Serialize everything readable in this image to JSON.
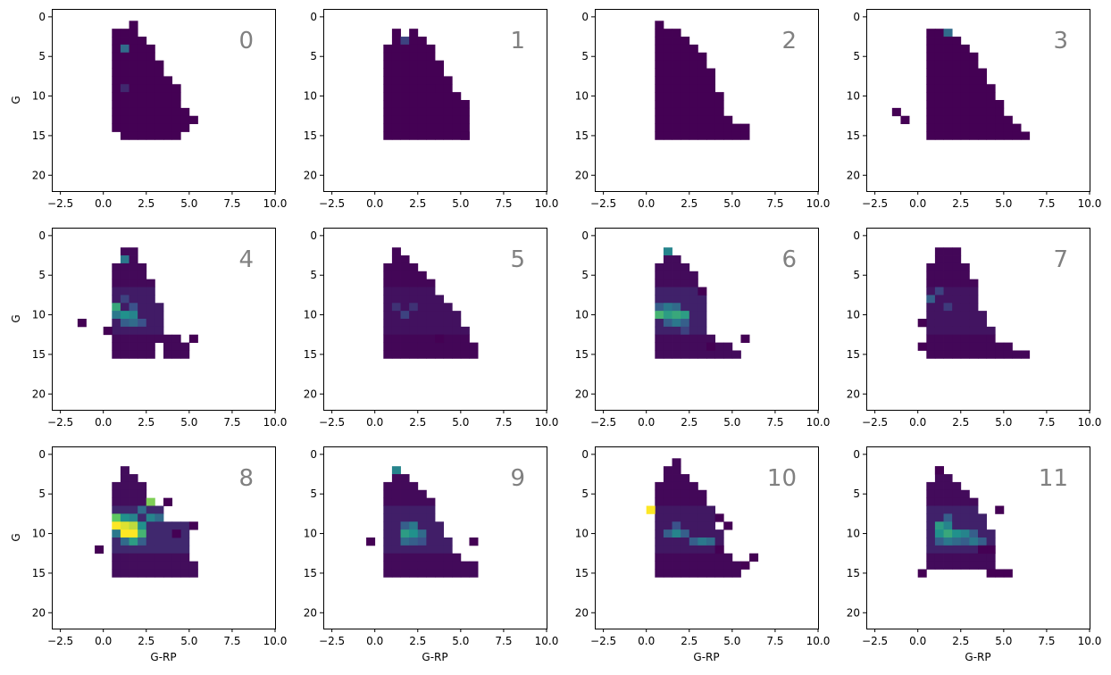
{
  "chart_data": {
    "type": "heatmap",
    "panel_type": "2d-histogram",
    "layout": {
      "rows": 3,
      "cols": 4
    },
    "xlim": [
      -3,
      10
    ],
    "ylim": [
      22,
      -1
    ],
    "y_inverted": true,
    "xticks": [
      -2.5,
      0.0,
      2.5,
      5.0,
      7.5,
      10.0
    ],
    "xtick_labels": [
      "−2.5",
      "0.0",
      "2.5",
      "5.0",
      "7.5",
      "10.0"
    ],
    "yticks": [
      0,
      5,
      10,
      15,
      20
    ],
    "ytick_labels": [
      "0",
      "5",
      "10",
      "15",
      "20"
    ],
    "xlabel": "G-RP",
    "ylabel": "G",
    "colormap": "viridis",
    "bin_width_x": 0.5,
    "bin_height_y": 1,
    "axis_label_visibility": "xlabel on bottom row, ylabel on left column",
    "panels": [
      {
        "label": "0",
        "hot": [
          [
            1.25,
            4,
            0.35
          ],
          [
            1.25,
            9,
            0.12
          ]
        ],
        "bg": 0.0,
        "profile": [
          [
            0.5,
            2,
            14
          ],
          [
            1.0,
            2,
            15
          ],
          [
            1.5,
            1,
            15
          ],
          [
            2.0,
            3,
            15
          ],
          [
            2.5,
            4,
            15
          ],
          [
            3.0,
            6,
            15
          ],
          [
            3.5,
            8,
            15
          ],
          [
            4.0,
            10,
            15
          ],
          [
            4.5,
            12,
            14
          ]
        ],
        "extra": [
          [
            4.25,
            9
          ],
          [
            5.25,
            13
          ]
        ]
      },
      {
        "label": "1",
        "hot": [
          [
            1.75,
            3,
            0.2
          ]
        ],
        "bg": 0.0,
        "profile": [
          [
            0.5,
            4,
            15
          ],
          [
            1.0,
            2,
            15
          ],
          [
            1.5,
            3,
            15
          ],
          [
            2.0,
            2,
            15
          ],
          [
            2.5,
            3,
            15
          ],
          [
            3.0,
            4,
            15
          ],
          [
            3.5,
            6,
            15
          ],
          [
            4.0,
            8,
            15
          ],
          [
            4.5,
            10,
            15
          ],
          [
            5.0,
            11,
            15
          ]
        ],
        "extra": [
          [
            3.25,
            9
          ],
          [
            5.25,
            15
          ]
        ]
      },
      {
        "label": "2",
        "hot": [],
        "bg": 0.0,
        "profile": [
          [
            0.5,
            1,
            15
          ],
          [
            1.0,
            2,
            15
          ],
          [
            1.5,
            2,
            15
          ],
          [
            2.0,
            3,
            15
          ],
          [
            2.5,
            4,
            15
          ],
          [
            3.0,
            5,
            15
          ],
          [
            3.5,
            7,
            15
          ],
          [
            4.0,
            10,
            15
          ],
          [
            4.5,
            13,
            15
          ],
          [
            5.0,
            14,
            15
          ],
          [
            5.5,
            14,
            15
          ]
        ],
        "extra": []
      },
      {
        "label": "3",
        "hot": [
          [
            1.75,
            2,
            0.35
          ]
        ],
        "bg": 0.0,
        "profile": [
          [
            0.5,
            2,
            15
          ],
          [
            1.0,
            2,
            15
          ],
          [
            1.5,
            2,
            15
          ],
          [
            2.0,
            3,
            15
          ],
          [
            2.5,
            4,
            15
          ],
          [
            3.0,
            5,
            15
          ],
          [
            3.5,
            7,
            15
          ],
          [
            4.0,
            9,
            15
          ],
          [
            4.5,
            11,
            15
          ],
          [
            5.0,
            13,
            15
          ],
          [
            5.5,
            14,
            15
          ],
          [
            6.0,
            15,
            15
          ]
        ],
        "extra": [
          [
            -1.25,
            12
          ],
          [
            -0.75,
            13
          ]
        ]
      },
      {
        "label": "4",
        "hot": [
          [
            1.25,
            3,
            0.4
          ],
          [
            0.75,
            9,
            0.6
          ],
          [
            1.25,
            10,
            0.5
          ],
          [
            1.75,
            10,
            0.45
          ],
          [
            0.75,
            10,
            0.4
          ],
          [
            1.75,
            11,
            0.35
          ],
          [
            1.25,
            11,
            0.3
          ],
          [
            2.25,
            11,
            0.25
          ],
          [
            1.25,
            8,
            0.2
          ],
          [
            1.75,
            9,
            0.25
          ]
        ],
        "bg": 0.08,
        "profile": [
          [
            0.5,
            4,
            15
          ],
          [
            1.0,
            2,
            15
          ],
          [
            1.5,
            2,
            15
          ],
          [
            2.0,
            4,
            15
          ],
          [
            2.5,
            6,
            15
          ],
          [
            3.0,
            9,
            13
          ],
          [
            3.5,
            13,
            15
          ],
          [
            4.0,
            13,
            15
          ],
          [
            4.5,
            14,
            15
          ]
        ],
        "extra": [
          [
            -1.25,
            11
          ],
          [
            0.25,
            12
          ],
          [
            5.25,
            13
          ]
        ]
      },
      {
        "label": "5",
        "hot": [
          [
            1.75,
            10,
            0.2
          ],
          [
            1.25,
            9,
            0.15
          ],
          [
            2.25,
            9,
            0.15
          ]
        ],
        "bg": 0.05,
        "profile": [
          [
            0.5,
            4,
            15
          ],
          [
            1.0,
            2,
            15
          ],
          [
            1.5,
            3,
            15
          ],
          [
            2.0,
            4,
            15
          ],
          [
            2.5,
            5,
            15
          ],
          [
            3.0,
            6,
            15
          ],
          [
            3.5,
            8,
            15
          ],
          [
            4.0,
            9,
            15
          ],
          [
            4.5,
            10,
            15
          ],
          [
            5.0,
            12,
            15
          ],
          [
            5.5,
            14,
            15
          ]
        ],
        "extra": [
          [
            3.75,
            13
          ]
        ]
      },
      {
        "label": "6",
        "hot": [
          [
            1.25,
            2,
            0.45
          ],
          [
            0.75,
            10,
            0.65
          ],
          [
            1.25,
            10,
            0.55
          ],
          [
            1.75,
            10,
            0.6
          ],
          [
            2.25,
            10,
            0.55
          ],
          [
            1.25,
            9,
            0.4
          ],
          [
            1.75,
            9,
            0.35
          ],
          [
            0.75,
            9,
            0.3
          ],
          [
            1.75,
            11,
            0.4
          ],
          [
            2.25,
            11,
            0.3
          ],
          [
            1.25,
            11,
            0.3
          ],
          [
            2.25,
            12,
            0.2
          ]
        ],
        "bg": 0.1,
        "profile": [
          [
            0.5,
            4,
            15
          ],
          [
            1.0,
            2,
            15
          ],
          [
            1.5,
            3,
            15
          ],
          [
            2.0,
            4,
            15
          ],
          [
            2.5,
            5,
            15
          ],
          [
            3.0,
            8,
            15
          ],
          [
            3.5,
            13,
            15
          ],
          [
            4.0,
            14,
            15
          ],
          [
            4.5,
            14,
            15
          ],
          [
            5.0,
            15,
            15
          ]
        ],
        "extra": [
          [
            3.25,
            7
          ],
          [
            3.75,
            14
          ],
          [
            5.75,
            13
          ]
        ]
      },
      {
        "label": "7",
        "hot": [
          [
            0.75,
            8,
            0.3
          ],
          [
            1.25,
            7,
            0.2
          ],
          [
            1.75,
            9,
            0.18
          ]
        ],
        "bg": 0.06,
        "profile": [
          [
            0.5,
            4,
            15
          ],
          [
            1.0,
            2,
            15
          ],
          [
            1.5,
            2,
            15
          ],
          [
            2.0,
            2,
            15
          ],
          [
            2.5,
            4,
            15
          ],
          [
            3.0,
            6,
            15
          ],
          [
            3.5,
            10,
            15
          ],
          [
            4.0,
            12,
            15
          ],
          [
            4.5,
            14,
            15
          ],
          [
            5.0,
            14,
            15
          ],
          [
            5.5,
            15,
            15
          ],
          [
            6.0,
            15,
            15
          ]
        ],
        "extra": [
          [
            0.25,
            11
          ],
          [
            0.25,
            14
          ]
        ]
      },
      {
        "label": "8",
        "hot": [
          [
            2.75,
            6,
            0.8
          ],
          [
            0.75,
            8,
            0.75
          ],
          [
            1.25,
            9,
            0.95
          ],
          [
            1.75,
            9,
            0.9
          ],
          [
            0.75,
            9,
            1.0
          ],
          [
            1.25,
            10,
            1.0
          ],
          [
            1.75,
            10,
            1.0
          ],
          [
            2.25,
            10,
            0.65
          ],
          [
            1.75,
            11,
            0.55
          ],
          [
            2.25,
            9,
            0.5
          ],
          [
            2.75,
            8,
            0.45
          ],
          [
            3.25,
            8,
            0.35
          ],
          [
            1.25,
            8,
            0.5
          ],
          [
            1.75,
            8,
            0.45
          ],
          [
            2.25,
            7,
            0.35
          ],
          [
            1.25,
            11,
            0.35
          ],
          [
            2.25,
            11,
            0.3
          ],
          [
            0.75,
            10,
            0.4
          ]
        ],
        "bg": 0.12,
        "profile": [
          [
            0.5,
            4,
            15
          ],
          [
            1.0,
            2,
            15
          ],
          [
            1.5,
            3,
            15
          ],
          [
            2.0,
            4,
            15
          ],
          [
            2.5,
            6,
            15
          ],
          [
            3.0,
            7,
            15
          ],
          [
            3.5,
            9,
            15
          ],
          [
            4.0,
            9,
            15
          ],
          [
            4.5,
            9,
            15
          ],
          [
            5.0,
            14,
            15
          ]
        ],
        "extra": [
          [
            -0.25,
            12
          ],
          [
            3.75,
            6
          ],
          [
            5.25,
            9
          ],
          [
            4.25,
            10
          ]
        ]
      },
      {
        "label": "9",
        "hot": [
          [
            1.25,
            2,
            0.45
          ],
          [
            1.75,
            10,
            0.55
          ],
          [
            2.25,
            10,
            0.5
          ],
          [
            2.25,
            9,
            0.4
          ],
          [
            1.75,
            11,
            0.35
          ],
          [
            2.75,
            10,
            0.35
          ],
          [
            2.25,
            11,
            0.3
          ],
          [
            2.75,
            11,
            0.25
          ],
          [
            1.75,
            9,
            0.3
          ]
        ],
        "bg": 0.09,
        "profile": [
          [
            0.5,
            4,
            15
          ],
          [
            1.0,
            2,
            15
          ],
          [
            1.5,
            3,
            15
          ],
          [
            2.0,
            4,
            15
          ],
          [
            2.5,
            5,
            15
          ],
          [
            3.0,
            6,
            15
          ],
          [
            3.5,
            9,
            15
          ],
          [
            4.0,
            11,
            15
          ],
          [
            4.5,
            13,
            15
          ],
          [
            5.0,
            14,
            15
          ],
          [
            5.5,
            14,
            15
          ]
        ],
        "extra": [
          [
            -0.25,
            11
          ],
          [
            5.75,
            11
          ]
        ]
      },
      {
        "label": "10",
        "hot": [
          [
            0.25,
            7,
            1.0
          ],
          [
            1.75,
            10,
            0.45
          ],
          [
            3.25,
            11,
            0.4
          ],
          [
            3.75,
            11,
            0.35
          ],
          [
            1.25,
            10,
            0.3
          ],
          [
            2.25,
            10,
            0.3
          ],
          [
            1.75,
            9,
            0.25
          ],
          [
            2.75,
            11,
            0.3
          ]
        ],
        "bg": 0.07,
        "profile": [
          [
            0.5,
            4,
            15
          ],
          [
            1.0,
            2,
            15
          ],
          [
            1.5,
            1,
            15
          ],
          [
            2.0,
            3,
            15
          ],
          [
            2.5,
            4,
            15
          ],
          [
            3.0,
            5,
            15
          ],
          [
            3.5,
            7,
            15
          ],
          [
            4.0,
            10,
            15
          ],
          [
            4.5,
            13,
            15
          ],
          [
            5.0,
            14,
            15
          ]
        ],
        "extra": [
          [
            4.25,
            8
          ],
          [
            4.75,
            9
          ],
          [
            4.25,
            12
          ],
          [
            5.75,
            14
          ],
          [
            6.25,
            13
          ]
        ]
      },
      {
        "label": "11",
        "hot": [
          [
            1.25,
            9,
            0.55
          ],
          [
            1.75,
            10,
            0.6
          ],
          [
            1.25,
            10,
            0.5
          ],
          [
            2.25,
            10,
            0.5
          ],
          [
            1.75,
            9,
            0.45
          ],
          [
            2.75,
            10,
            0.45
          ],
          [
            1.75,
            11,
            0.4
          ],
          [
            2.25,
            11,
            0.35
          ],
          [
            3.25,
            11,
            0.4
          ],
          [
            2.75,
            11,
            0.3
          ],
          [
            1.25,
            11,
            0.3
          ],
          [
            1.75,
            8,
            0.3
          ],
          [
            3.25,
            10,
            0.3
          ],
          [
            3.75,
            11,
            0.3
          ]
        ],
        "bg": 0.1,
        "profile": [
          [
            0.5,
            4,
            14
          ],
          [
            1.0,
            2,
            14
          ],
          [
            1.5,
            3,
            14
          ],
          [
            2.0,
            4,
            14
          ],
          [
            2.5,
            5,
            14
          ],
          [
            3.0,
            6,
            14
          ],
          [
            3.5,
            8,
            14
          ],
          [
            4.0,
            10,
            14
          ]
        ],
        "extra": [
          [
            0.25,
            15
          ],
          [
            1.25,
            2
          ],
          [
            4.25,
            15
          ],
          [
            4.75,
            15
          ],
          [
            5.25,
            15
          ],
          [
            4.25,
            12
          ],
          [
            3.75,
            12
          ],
          [
            4.75,
            7
          ]
        ]
      }
    ]
  }
}
